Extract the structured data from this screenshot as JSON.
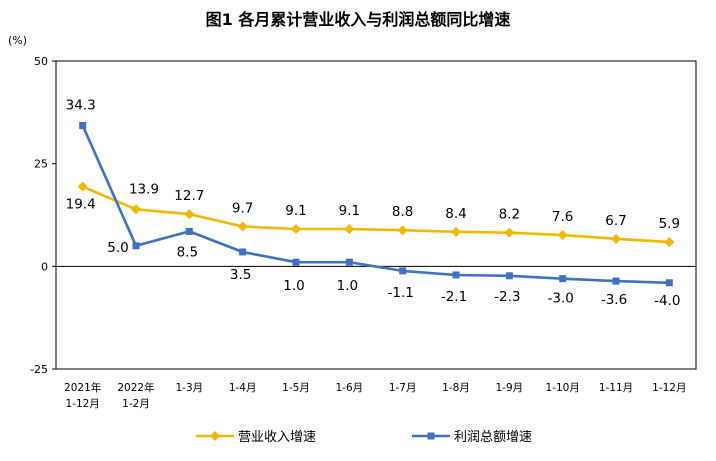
{
  "chart_data": {
    "type": "line",
    "title": "图1 各月累计营业收入与利润总额同比增速",
    "ylabel": "(%)",
    "ylim": [
      -25,
      50
    ],
    "yticks": [
      -25,
      0,
      25,
      50
    ],
    "categories": [
      [
        "2021年",
        "1-12月"
      ],
      [
        "2022年",
        "1-2月"
      ],
      [
        "1-3月"
      ],
      [
        "1-4月"
      ],
      [
        "1-5月"
      ],
      [
        "1-6月"
      ],
      [
        "1-7月"
      ],
      [
        "1-8月"
      ],
      [
        "1-9月"
      ],
      [
        "1-10月"
      ],
      [
        "1-11月"
      ],
      [
        "1-12月"
      ]
    ],
    "series": [
      {
        "name": "营业收入增速",
        "color": "#F5B800",
        "marker": "diamond",
        "values": [
          19.4,
          13.9,
          12.7,
          9.7,
          9.1,
          9.1,
          8.8,
          8.4,
          8.2,
          7.6,
          6.7,
          5.9
        ],
        "labels": [
          "19.4",
          "13.9",
          "12.7",
          "9.7",
          "9.1",
          "9.1",
          "8.8",
          "8.4",
          "8.2",
          "7.6",
          "6.7",
          "5.9"
        ]
      },
      {
        "name": "利润总额增速",
        "color": "#3F72C4",
        "marker": "square",
        "values": [
          34.3,
          5.0,
          8.5,
          3.5,
          1.0,
          1.0,
          -1.1,
          -2.1,
          -2.3,
          -3.0,
          -3.6,
          -4.0
        ],
        "labels": [
          "34.3",
          "5.0",
          "8.5",
          "3.5",
          "1.0",
          "1.0",
          "-1.1",
          "-2.1",
          "-2.3",
          "-3.0",
          "-3.6",
          "-4.0"
        ]
      }
    ],
    "grid": false,
    "legend_position": "bottom"
  }
}
